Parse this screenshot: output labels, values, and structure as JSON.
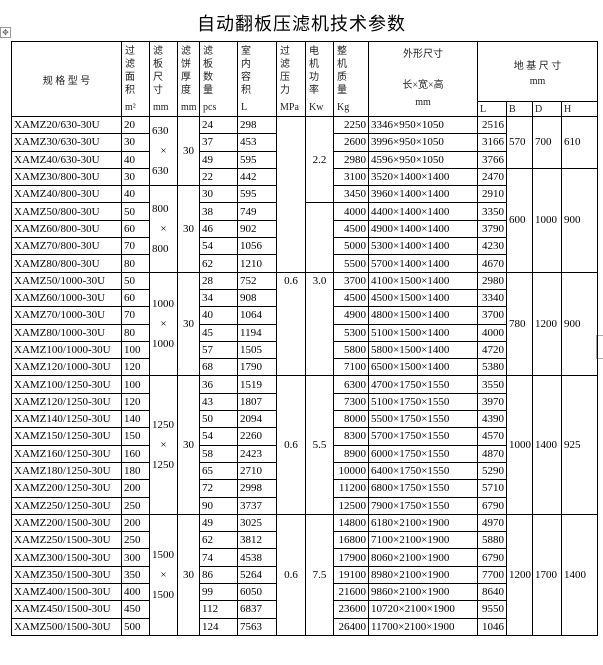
{
  "title": "自动翻板压滤机技术参数",
  "header": {
    "model": "规 格 型 号",
    "area": [
      "过",
      "滤",
      "面",
      "积",
      "m²"
    ],
    "plate": [
      "滤",
      "板",
      "尺",
      "寸",
      "mm"
    ],
    "cake": [
      "滤",
      "饼",
      "厚",
      "度",
      "mm"
    ],
    "pcs": [
      "滤",
      "板",
      "数",
      "量",
      "pcs"
    ],
    "volume": [
      "室",
      "内",
      "容",
      "积",
      "L"
    ],
    "pressure": [
      "过",
      "滤",
      "压",
      "力",
      "MPa"
    ],
    "power": [
      "电",
      "机",
      "功",
      "率",
      "Kw"
    ],
    "weight": [
      "整",
      "机",
      "质",
      "量",
      "Kg"
    ],
    "dims_title": "外形尺寸",
    "dims_sub": "长×宽×高",
    "dims_unit": "mm",
    "found_title": "地 基 尺 寸",
    "found_unit": "mm",
    "found_cols": [
      "L",
      "B",
      "D",
      "H"
    ]
  },
  "rows": [
    [
      "XAMZ20/630-30U",
      "20",
      "24",
      "298",
      "2250",
      "3346×950×1050",
      "2516"
    ],
    [
      "XAMZ30/630-30U",
      "30",
      "37",
      "453",
      "2600",
      "3996×950×1050",
      "3166"
    ],
    [
      "XAMZ40/630-30U",
      "40",
      "49",
      "595",
      "2980",
      "4596×950×1050",
      "3766"
    ],
    [
      "XAMZ30/800-30U",
      "30",
      "22",
      "442",
      "3100",
      "3520×1400×1400",
      "2470"
    ],
    [
      "XAMZ40/800-30U",
      "40",
      "30",
      "595",
      "3450",
      "3960×1400×1400",
      "2910"
    ],
    [
      "XAMZ50/800-30U",
      "50",
      "38",
      "749",
      "4000",
      "4400×1400×1400",
      "3350"
    ],
    [
      "XAMZ60/800-30U",
      "60",
      "46",
      "902",
      "4500",
      "4900×1400×1400",
      "3790"
    ],
    [
      "XAMZ70/800-30U",
      "70",
      "54",
      "1056",
      "5000",
      "5300×1400×1400",
      "4230"
    ],
    [
      "XAMZ80/800-30U",
      "80",
      "62",
      "1210",
      "5500",
      "5700×1400×1400",
      "4670"
    ],
    [
      "XAMZ50/1000-30U",
      "50",
      "28",
      "752",
      "3700",
      "4100×1500×1400",
      "2980"
    ],
    [
      "XAMZ60/1000-30U",
      "60",
      "34",
      "908",
      "4500",
      "4500×1500×1400",
      "3340"
    ],
    [
      "XAMZ70/1000-30U",
      "70",
      "40",
      "1064",
      "4900",
      "4800×1500×1400",
      "3700"
    ],
    [
      "XAMZ80/1000-30U",
      "80",
      "45",
      "1194",
      "5300",
      "5100×1500×1400",
      "4000"
    ],
    [
      "XAMZ100/1000-30U",
      "100",
      "57",
      "1505",
      "5800",
      "5800×1500×1400",
      "4720"
    ],
    [
      "XAMZ120/1000-30U",
      "120",
      "68",
      "1790",
      "7100",
      "6500×1500×1400",
      "5380"
    ],
    [
      "XAMZ100/1250-30U",
      "100",
      "36",
      "1519",
      "6300",
      "4700×1750×1550",
      "3550"
    ],
    [
      "XAMZ120/1250-30U",
      "120",
      "43",
      "1807",
      "7300",
      "5100×1750×1550",
      "3970"
    ],
    [
      "XAMZ140/1250-30U",
      "140",
      "50",
      "2094",
      "8000",
      "5500×1750×1550",
      "4390"
    ],
    [
      "XAMZ150/1250-30U",
      "150",
      "54",
      "2260",
      "8300",
      "5700×1750×1550",
      "4570"
    ],
    [
      "XAMZ160/1250-30U",
      "160",
      "58",
      "2423",
      "8900",
      "6000×1750×1550",
      "4870"
    ],
    [
      "XAMZ180/1250-30U",
      "180",
      "65",
      "2710",
      "10000",
      "6400×1750×1550",
      "5290"
    ],
    [
      "XAMZ200/1250-30U",
      "200",
      "72",
      "2998",
      "11200",
      "6800×1750×1550",
      "5710"
    ],
    [
      "XAMZ250/1250-30U",
      "250",
      "90",
      "3737",
      "12500",
      "7900×1750×1550",
      "6790"
    ],
    [
      "XAMZ200/1500-30U",
      "200",
      "49",
      "3025",
      "14800",
      "6180×2100×1900",
      "4970"
    ],
    [
      "XAMZ250/1500-30U",
      "250",
      "62",
      "3812",
      "16800",
      "7100×2100×1900",
      "5880"
    ],
    [
      "XAMZ300/1500-30U",
      "300",
      "74",
      "4538",
      "17900",
      "8060×2100×1900",
      "6790"
    ],
    [
      "XAMZ350/1500-30U",
      "350",
      "86",
      "5264",
      "19100",
      "8980×2100×1900",
      "7700"
    ],
    [
      "XAMZ400/1500-30U",
      "400",
      "99",
      "6050",
      "21600",
      "9860×2100×1900",
      "8640"
    ],
    [
      "XAMZ450/1500-30U",
      "450",
      "112",
      "6837",
      "23600",
      "10720×2100×1900",
      "9550"
    ],
    [
      "XAMZ500/1500-30U",
      "500",
      "124",
      "7563",
      "26400",
      "11700×2100×1900",
      "1046"
    ]
  ],
  "plate_groups": [
    {
      "lines": [
        "630",
        "×",
        "630"
      ],
      "cake": "30"
    },
    {
      "lines": [
        "800",
        "×",
        "800"
      ],
      "cake": "30"
    },
    {
      "lines": [
        "1000",
        "×",
        "1000"
      ],
      "cake": "30"
    },
    {
      "lines": [
        "1250",
        "×",
        "1250"
      ],
      "cake": "30"
    },
    {
      "lines": [
        "1500",
        "×",
        "1500"
      ],
      "cake": "30"
    }
  ],
  "pressure_groups": [
    "",
    "0.6",
    "0.6",
    "0.6"
  ],
  "power_groups": [
    "2.2",
    "",
    "3.0",
    "5.5",
    "7.5"
  ],
  "foundation_groups": [
    [
      "570",
      "700",
      "610"
    ],
    [
      "600",
      "1000",
      "900"
    ],
    [
      "780",
      "1200",
      "900"
    ],
    [
      "1000",
      "1400",
      "925"
    ],
    [
      "1200",
      "1700",
      "1400"
    ]
  ]
}
